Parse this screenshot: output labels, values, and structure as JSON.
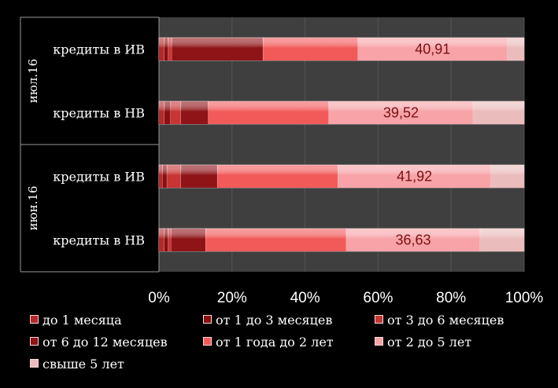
{
  "chart_data": {
    "type": "bar",
    "orientation": "horizontal",
    "stacked": "percent",
    "groups": [
      {
        "label": "июл.16",
        "categories": [
          "кредиты в ИВ",
          "кредиты в НВ"
        ]
      },
      {
        "label": "июн.16",
        "categories": [
          "кредиты в ИВ",
          "кредиты в НВ"
        ]
      }
    ],
    "categories": [
      "кредиты в ИВ",
      "кредиты в НВ",
      "кредиты в ИВ",
      "кредиты в НВ"
    ],
    "series": [
      {
        "name": "до 1 месяца",
        "color": "#b22a2a",
        "values": [
          1.5,
          1.5,
          1.0,
          1.5
        ]
      },
      {
        "name": "от 1 до 3 месяцев",
        "color": "#8a0f12",
        "values": [
          1.0,
          1.7,
          1.2,
          1.0
        ]
      },
      {
        "name": "от 3 до 6 месяцев",
        "color": "#c83535",
        "values": [
          1.0,
          2.8,
          3.8,
          0.8
        ]
      },
      {
        "name": "от 6 до 12 месяцев",
        "color": "#8e1418",
        "values": [
          25.0,
          7.5,
          10.0,
          9.5
        ]
      },
      {
        "name": "от 1 года до 2 лет",
        "color": "#f25a5a",
        "values": [
          26.0,
          33.0,
          33.0,
          38.5
        ]
      },
      {
        "name": "от 2 до 5 лет",
        "color": "#f7a3a8",
        "values": [
          40.91,
          39.52,
          41.92,
          36.63
        ]
      },
      {
        "name": "свыше 5 лет",
        "color": "#eabcbc",
        "values": [
          4.59,
          14.0,
          9.08,
          12.07
        ]
      }
    ],
    "data_labels": [
      "40,91",
      "39,52",
      "41,92",
      "36,63"
    ],
    "x_ticks": [
      "0%",
      "20%",
      "40%",
      "60%",
      "80%",
      "100%"
    ],
    "xlim": [
      0,
      100
    ],
    "grid": true,
    "legend_position": "bottom",
    "colors": {
      "background": "#000000",
      "plot_area": "#3f3f3f",
      "gridline": "#555555",
      "data_label": "#7a1010"
    }
  }
}
